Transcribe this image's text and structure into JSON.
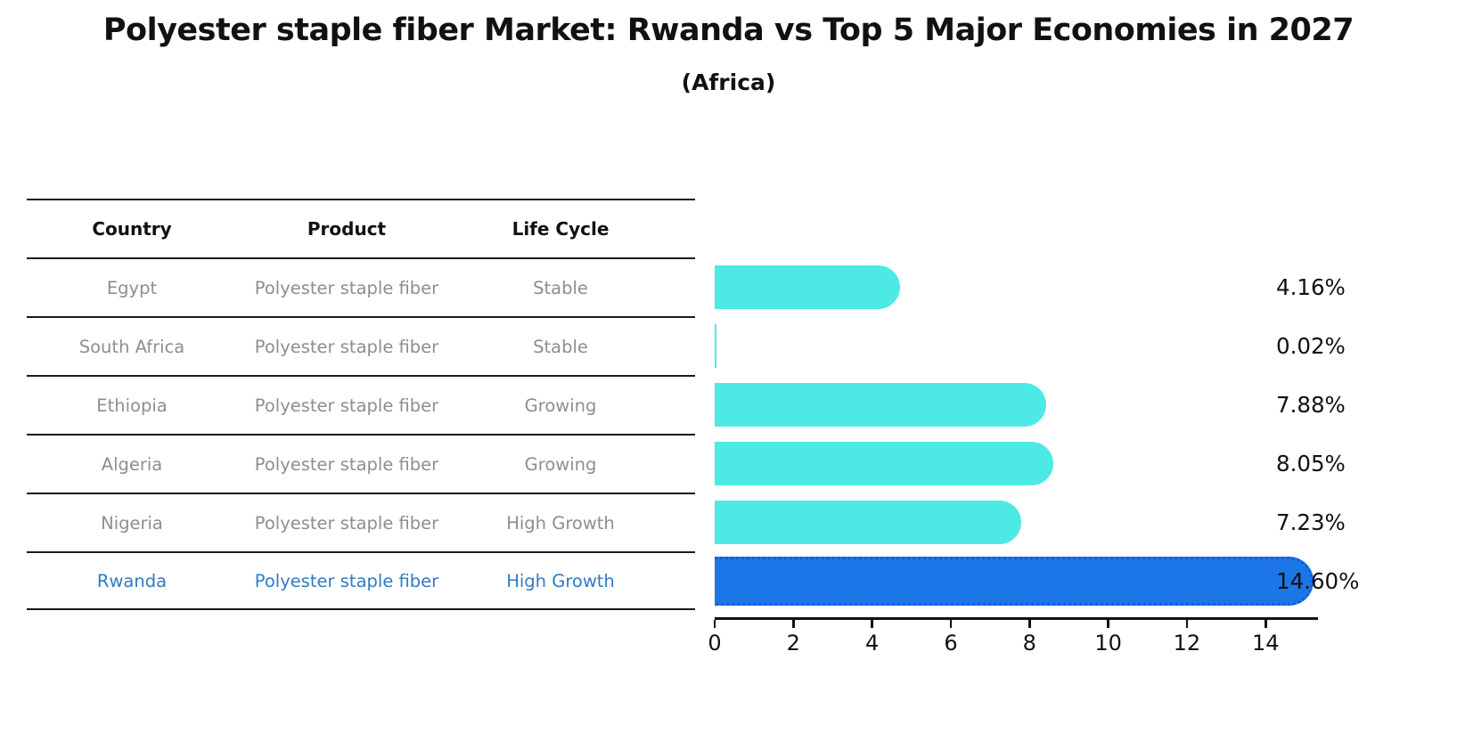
{
  "title": "Polyester staple fiber Market: Rwanda vs Top 5 Major Economies in 2027",
  "subtitle": "(Africa)",
  "table": {
    "headers": [
      "Country",
      "Product",
      "Life Cycle"
    ],
    "rows": [
      {
        "country": "Egypt",
        "product": "Polyester staple fiber",
        "life_cycle": "Stable",
        "highlight": false
      },
      {
        "country": "South Africa",
        "product": "Polyester staple fiber",
        "life_cycle": "Stable",
        "highlight": false
      },
      {
        "country": "Ethiopia",
        "product": "Polyester staple fiber",
        "life_cycle": "Growing",
        "highlight": false
      },
      {
        "country": "Algeria",
        "product": "Polyester staple fiber",
        "life_cycle": "Growing",
        "highlight": false
      },
      {
        "country": "Nigeria",
        "product": "Polyester staple fiber",
        "life_cycle": "High Growth",
        "highlight": false
      },
      {
        "country": "Rwanda",
        "product": "Polyester staple fiber",
        "life_cycle": "High Growth",
        "highlight": true
      }
    ]
  },
  "chart_data": {
    "type": "bar",
    "orientation": "horizontal",
    "title": "Polyester staple fiber Market: Rwanda vs Top 5 Major Economies in 2027",
    "subtitle": "(Africa)",
    "categories": [
      "Egypt",
      "South Africa",
      "Ethiopia",
      "Algeria",
      "Nigeria",
      "Rwanda"
    ],
    "values": [
      4.16,
      0.02,
      7.88,
      8.05,
      7.23,
      14.6
    ],
    "value_labels": [
      "4.16%",
      "0.02%",
      "7.88%",
      "8.05%",
      "7.23%",
      "14.60%"
    ],
    "xlabel": "",
    "ylabel": "",
    "xlim": [
      0,
      15.33
    ],
    "xticks": [
      0,
      2,
      4,
      6,
      8,
      10,
      12,
      14
    ],
    "grid": false,
    "legend": "none",
    "highlight_index": 5
  },
  "colors": {
    "bar_default": "#4de9e4",
    "bar_highlight": "#1c76e8",
    "bar_highlight_edge": "#0e5fd6",
    "highlight_text": "#2f7cc4",
    "row_text": "#8e8e8e",
    "header_text": "#111111",
    "axis": "#111111"
  }
}
